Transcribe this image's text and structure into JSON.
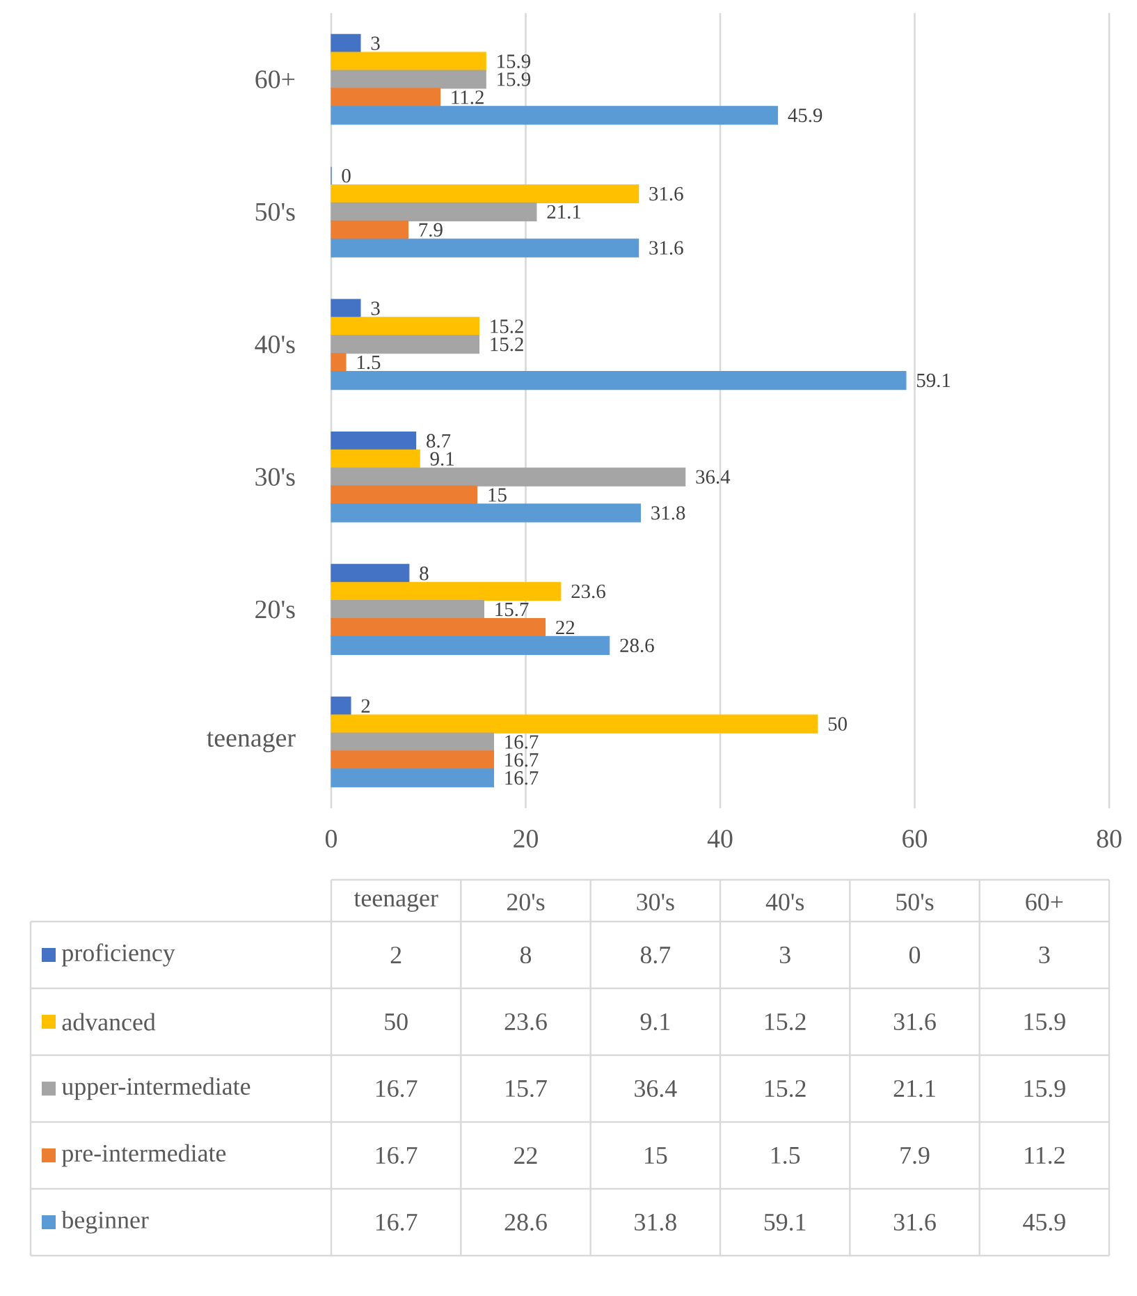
{
  "chart_data": {
    "type": "bar",
    "orientation": "horizontal",
    "categories": [
      "60+",
      "50's",
      "40's",
      "30's",
      "20's",
      "teenager"
    ],
    "series": [
      {
        "name": "proficiency",
        "color": "#4472c4",
        "values": [
          3,
          0,
          3,
          8.7,
          8,
          2
        ],
        "value_labels": [
          "3",
          "0",
          "3",
          "8.7",
          "8",
          "2"
        ]
      },
      {
        "name": "advanced",
        "color": "#ffc000",
        "values": [
          15.9,
          31.6,
          15.2,
          9.1,
          23.6,
          50
        ],
        "value_labels": [
          "15.9",
          "31.6",
          "15.2",
          "9.1",
          "23.6",
          "50"
        ]
      },
      {
        "name": "upper-intermediate",
        "color": "#a5a5a5",
        "values": [
          15.9,
          21.1,
          15.2,
          36.4,
          15.7,
          16.7
        ],
        "value_labels": [
          "15.9",
          "21.1",
          "15.2",
          "36.4",
          "15.7",
          "16.7"
        ]
      },
      {
        "name": "pre-intermediate",
        "color": "#ed7d31",
        "values": [
          11.2,
          7.9,
          1.5,
          15,
          22,
          16.7
        ],
        "value_labels": [
          "11.2",
          "7.9",
          "1.5",
          "15",
          "22",
          "16.7"
        ]
      },
      {
        "name": "beginner",
        "color": "#5b9bd5",
        "values": [
          45.9,
          31.6,
          59.1,
          31.8,
          28.6,
          16.7
        ],
        "value_labels": [
          "45.9",
          "31.6",
          "59.1",
          "31.8",
          "28.6",
          "16.7"
        ]
      }
    ],
    "xlim": [
      0,
      80
    ],
    "xticks": [
      0,
      20,
      40,
      60,
      80
    ],
    "grid": "x",
    "legend": "bottom"
  }
}
